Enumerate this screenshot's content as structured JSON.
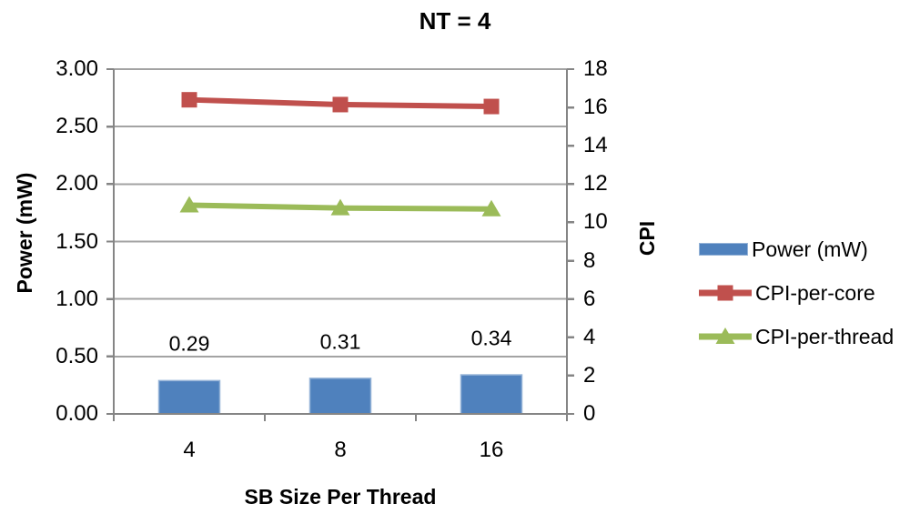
{
  "chart_data": {
    "type": "combo",
    "title": "NT = 4",
    "x_axis_title": "SB Size Per Thread",
    "categories": [
      "4",
      "8",
      "16"
    ],
    "left_axis": {
      "title": "Power (mW)",
      "min": 0,
      "max": 3,
      "ticks": [
        "0.00",
        "0.50",
        "1.00",
        "1.50",
        "2.00",
        "2.50",
        "3.00"
      ]
    },
    "right_axis": {
      "title": "CPI",
      "min": 0,
      "max": 18,
      "ticks": [
        "0",
        "2",
        "4",
        "6",
        "8",
        "10",
        "12",
        "14",
        "16",
        "18"
      ]
    },
    "series": [
      {
        "name": "Power (mW)",
        "type": "bar",
        "axis": "left",
        "color": "#4F81BD",
        "border_color": "#95B3D7",
        "values": [
          0.29,
          0.31,
          0.34
        ],
        "data_labels": [
          "0.29",
          "0.31",
          "0.34"
        ]
      },
      {
        "name": "CPI-per-core",
        "type": "line",
        "marker": "square",
        "axis": "right",
        "color": "#C0504D",
        "values": [
          16.4,
          16.15,
          16.05
        ]
      },
      {
        "name": "CPI-per-thread",
        "type": "line",
        "marker": "triangle",
        "axis": "right",
        "color": "#9BBB59",
        "values": [
          10.9,
          10.75,
          10.7
        ]
      }
    ],
    "legend": [
      "Power (mW)",
      "CPI-per-core",
      "CPI-per-thread"
    ],
    "legend_position": "right",
    "gridlines": "horizontal",
    "colors": {
      "gridline": "#A3A3A3",
      "axis": "#858585",
      "text": "#000000",
      "background": "#FFFFFF"
    }
  }
}
